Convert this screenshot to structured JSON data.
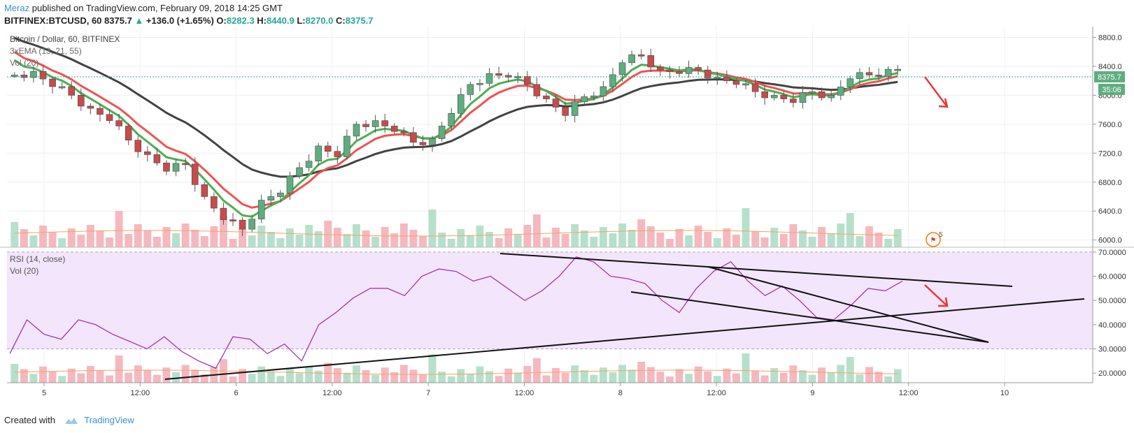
{
  "header": {
    "author": "Meraz",
    "published_text": " published on TradingView.com, February 09, 2018 14:25 GMT",
    "ticker": "BITFINEX:BTCUSD, 60",
    "last": "8375.7",
    "change": "+136.0 (+1.65%)",
    "o_label": "O:",
    "o": "8282.3",
    "h_label": "H:",
    "h": "8440.9",
    "l_label": "L:",
    "l": "8270.0",
    "c_label": "C:",
    "c": "8375.7"
  },
  "legend": {
    "symbol": "Bitcoin / Dollar, 60, BITFINEX",
    "ema": "3xEMA (13, 21, 55)",
    "vol": "Vol (20)",
    "rsi": "RSI (14, close)",
    "rsi_vol": "Vol (20)"
  },
  "price_axis": {
    "ticks": [
      "8800.0",
      "8400.0",
      "8000.0",
      "7600.0",
      "7200.0",
      "6800.0",
      "6400.0",
      "6000.0"
    ],
    "last_price": "8375.7",
    "countdown": "35:06"
  },
  "rsi_axis": {
    "ticks": [
      "70.0000",
      "60.0000",
      "50.0000",
      "40.0000",
      "30.0000",
      "20.0000"
    ]
  },
  "time_axis": {
    "ticks": [
      "5",
      "12:00",
      "6",
      "12:00",
      "7",
      "12:00",
      "8",
      "12:00",
      "9",
      "12:00",
      "10"
    ]
  },
  "event_badge": "5",
  "footer": {
    "created_with": "Created with",
    "brand": "TradingView"
  },
  "colors": {
    "up": "#26a69a",
    "up_fill": "#5fad7f",
    "down": "#c84b4b",
    "ema13": "#4caf50",
    "ema21": "#ef5350",
    "ema55": "#424242",
    "rsi": "#9c27b0",
    "rsi_band": "#f3e5fb",
    "accent": "#3a8fd6"
  },
  "chart_data": {
    "type": "candlestick",
    "title": "Bitcoin / Dollar, 60, BITFINEX",
    "ylim": [
      5900,
      8950
    ],
    "x": [
      "5",
      "12:00",
      "6",
      "12:00",
      "7",
      "12:00",
      "8",
      "12:00",
      "9",
      "12:00",
      "10"
    ],
    "close_approx": [
      8280,
      8330,
      8120,
      8000,
      7820,
      7650,
      7380,
      7180,
      6950,
      7050,
      6600,
      6280,
      6150,
      6550,
      6650,
      7000,
      7300,
      7150,
      7600,
      7650,
      7500,
      7350,
      7400,
      7750,
      8150,
      8300,
      8250,
      8150,
      7950,
      7720,
      7980,
      8120,
      8450,
      8550,
      8350,
      8300,
      8350,
      8250,
      8150,
      8050,
      8000,
      7900,
      8050,
      8000,
      8230,
      8280,
      8360
    ],
    "ema_series": [
      {
        "name": "3xEMA 13",
        "period": 13
      },
      {
        "name": "3xEMA 21",
        "period": 21
      },
      {
        "name": "3xEMA 55",
        "period": 55
      }
    ],
    "rsi": {
      "name": "RSI (14, close)",
      "ylim": [
        16,
        72
      ],
      "levels": [
        70,
        30
      ],
      "values": [
        28,
        42,
        36,
        34,
        42,
        40,
        36,
        33,
        30,
        35,
        29,
        25,
        22,
        35,
        34,
        28,
        32,
        25,
        40,
        45,
        51,
        55,
        55,
        52,
        60,
        63,
        62,
        58,
        60,
        55,
        50,
        54,
        60,
        68,
        66,
        60,
        59,
        57,
        50,
        45,
        55,
        62,
        66,
        58,
        52,
        56,
        50,
        43,
        42,
        48,
        55,
        54,
        58
      ]
    },
    "volume_note": "histogram of hourly volume with Vol (20) average line"
  }
}
